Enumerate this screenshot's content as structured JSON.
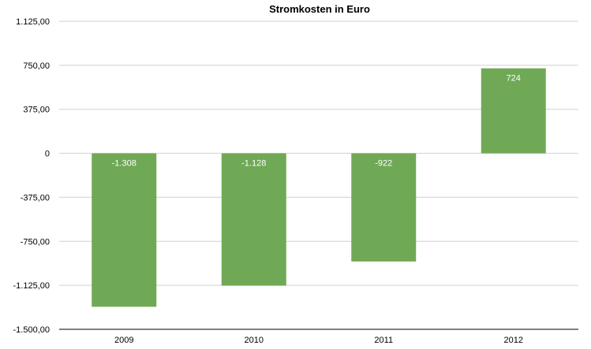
{
  "chart_data": {
    "type": "bar",
    "title": "Stromkosten in Euro",
    "xlabel": "",
    "ylabel": "",
    "categories": [
      "2009",
      "2010",
      "2011",
      "2012"
    ],
    "values": [
      -1308,
      -1128,
      -922,
      724
    ],
    "value_labels": [
      "-1.308",
      "-1.128",
      "-922",
      "724"
    ],
    "ylim": [
      -1500,
      1125
    ],
    "yticks": [
      1125,
      750,
      375,
      0,
      -375,
      -750,
      -1125,
      -1500
    ],
    "ytick_labels": [
      "1.125,00",
      "750,00",
      "375,00",
      "0",
      "-375,00",
      "-750,00",
      "-1.125,00",
      "-1.500,00"
    ],
    "grid": true,
    "legend": "none",
    "bar_color": "#70a956"
  }
}
